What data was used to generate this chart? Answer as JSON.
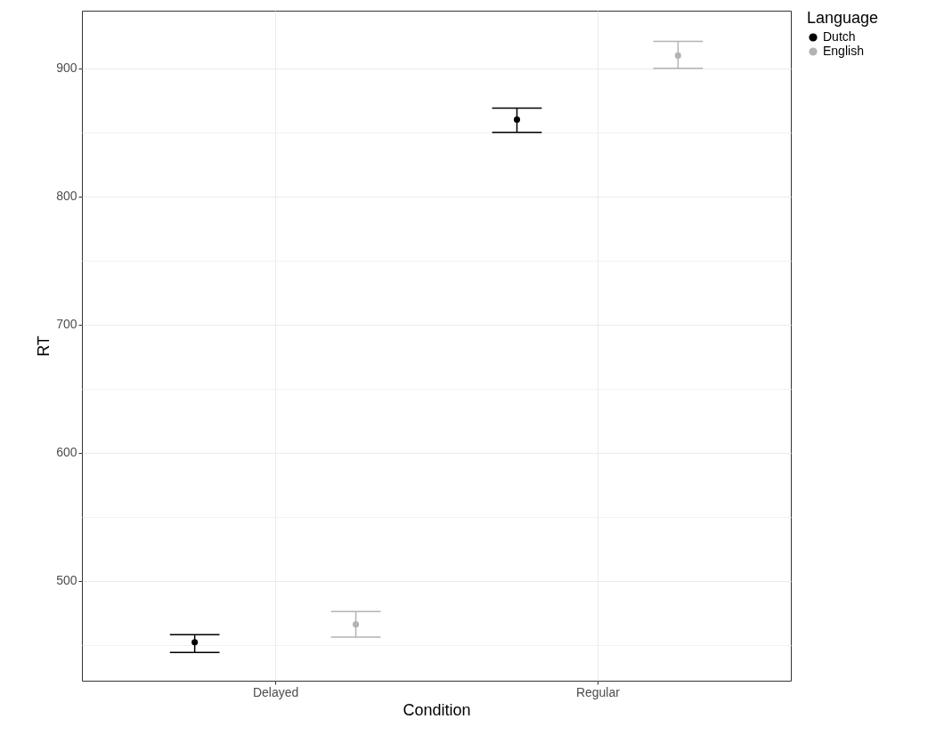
{
  "chart_data": {
    "type": "scatter",
    "xlabel": "Condition",
    "ylabel": "RT",
    "legend_title": "Language",
    "categories": [
      "Delayed",
      "Regular"
    ],
    "series": [
      {
        "name": "Dutch",
        "color": "#000000",
        "values": [
          452,
          860
        ],
        "errors": [
          [
            444,
            458
          ],
          [
            850,
            869
          ]
        ]
      },
      {
        "name": "English",
        "color": "#b3b3b3",
        "values": [
          466,
          910
        ],
        "errors": [
          [
            456,
            476
          ],
          [
            900,
            921
          ]
        ]
      }
    ],
    "ylim": [
      422,
      945
    ],
    "yticks": [
      {
        "value": 450,
        "label": null
      },
      500,
      {
        "value": 550,
        "label": null
      },
      600,
      {
        "value": 650,
        "label": null
      },
      700,
      {
        "value": 750,
        "label": null
      },
      800,
      {
        "value": 850,
        "label": null
      },
      900
    ],
    "grid": true,
    "legend": "right",
    "marker": "circle"
  }
}
